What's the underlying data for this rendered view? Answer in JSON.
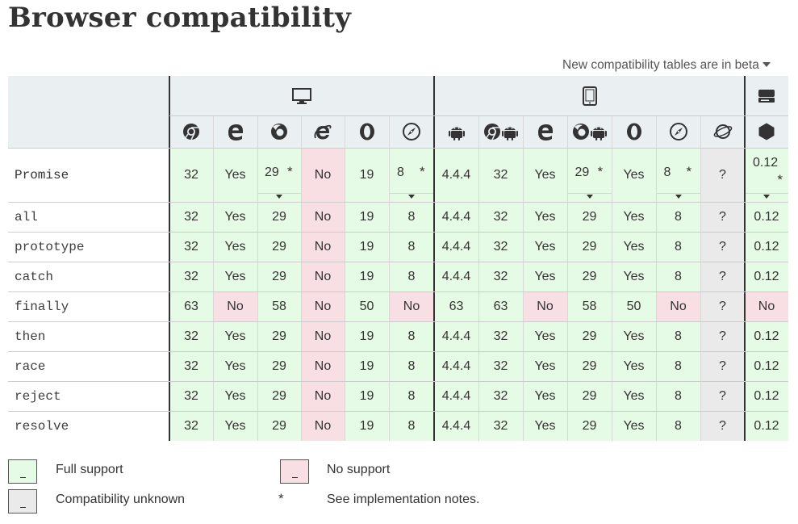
{
  "page": {
    "title": "Browser compatibility",
    "beta_link": "New compatibility tables are in beta"
  },
  "colors": {
    "full_support": "#e6fbe6",
    "no_support": "#f8dfe3",
    "unknown": "#eaeaea",
    "header_bg": "#eaeff2"
  },
  "platforms": [
    {
      "name": "desktop",
      "icon": "desktop-monitor-icon"
    },
    {
      "name": "mobile",
      "icon": "mobile-tablet-icon"
    },
    {
      "name": "server",
      "icon": "server-icon"
    }
  ],
  "browsers": [
    {
      "name": "chrome",
      "icon": "chrome-icon"
    },
    {
      "name": "edge",
      "icon": "edge-icon"
    },
    {
      "name": "firefox",
      "icon": "firefox-icon"
    },
    {
      "name": "ie",
      "icon": "internet-explorer-icon"
    },
    {
      "name": "opera",
      "icon": "opera-icon"
    },
    {
      "name": "safari",
      "icon": "safari-icon"
    },
    {
      "name": "webview-android",
      "icon": "android-icon"
    },
    {
      "name": "chrome-android",
      "icon": "chrome-android-icon"
    },
    {
      "name": "edge-mobile",
      "icon": "edge-icon"
    },
    {
      "name": "firefox-android",
      "icon": "firefox-android-icon"
    },
    {
      "name": "opera-android",
      "icon": "opera-icon"
    },
    {
      "name": "safari-ios",
      "icon": "safari-icon"
    },
    {
      "name": "samsung-internet",
      "icon": "samsung-internet-icon"
    },
    {
      "name": "nodejs",
      "icon": "nodejs-icon"
    }
  ],
  "rows": [
    {
      "feature": "Promise",
      "cells": [
        {
          "v": "32",
          "s": "yes"
        },
        {
          "v": "Yes",
          "s": "yes"
        },
        {
          "v": "29",
          "s": "yes",
          "note": "*"
        },
        {
          "v": "No",
          "s": "no"
        },
        {
          "v": "19",
          "s": "yes"
        },
        {
          "v": "8",
          "s": "yes",
          "note": "*"
        },
        {
          "v": "4.4.4",
          "s": "yes"
        },
        {
          "v": "32",
          "s": "yes"
        },
        {
          "v": "Yes",
          "s": "yes"
        },
        {
          "v": "29",
          "s": "yes",
          "note": "*"
        },
        {
          "v": "Yes",
          "s": "yes"
        },
        {
          "v": "8",
          "s": "yes",
          "note": "*"
        },
        {
          "v": "?",
          "s": "unk"
        },
        {
          "v": "0.12",
          "s": "yes",
          "note": "*"
        }
      ]
    },
    {
      "feature": "all",
      "cells": [
        {
          "v": "32",
          "s": "yes"
        },
        {
          "v": "Yes",
          "s": "yes"
        },
        {
          "v": "29",
          "s": "yes"
        },
        {
          "v": "No",
          "s": "no"
        },
        {
          "v": "19",
          "s": "yes"
        },
        {
          "v": "8",
          "s": "yes"
        },
        {
          "v": "4.4.4",
          "s": "yes"
        },
        {
          "v": "32",
          "s": "yes"
        },
        {
          "v": "Yes",
          "s": "yes"
        },
        {
          "v": "29",
          "s": "yes"
        },
        {
          "v": "Yes",
          "s": "yes"
        },
        {
          "v": "8",
          "s": "yes"
        },
        {
          "v": "?",
          "s": "unk"
        },
        {
          "v": "0.12",
          "s": "yes"
        }
      ]
    },
    {
      "feature": "prototype",
      "cells": [
        {
          "v": "32",
          "s": "yes"
        },
        {
          "v": "Yes",
          "s": "yes"
        },
        {
          "v": "29",
          "s": "yes"
        },
        {
          "v": "No",
          "s": "no"
        },
        {
          "v": "19",
          "s": "yes"
        },
        {
          "v": "8",
          "s": "yes"
        },
        {
          "v": "4.4.4",
          "s": "yes"
        },
        {
          "v": "32",
          "s": "yes"
        },
        {
          "v": "Yes",
          "s": "yes"
        },
        {
          "v": "29",
          "s": "yes"
        },
        {
          "v": "Yes",
          "s": "yes"
        },
        {
          "v": "8",
          "s": "yes"
        },
        {
          "v": "?",
          "s": "unk"
        },
        {
          "v": "0.12",
          "s": "yes"
        }
      ]
    },
    {
      "feature": "catch",
      "cells": [
        {
          "v": "32",
          "s": "yes"
        },
        {
          "v": "Yes",
          "s": "yes"
        },
        {
          "v": "29",
          "s": "yes"
        },
        {
          "v": "No",
          "s": "no"
        },
        {
          "v": "19",
          "s": "yes"
        },
        {
          "v": "8",
          "s": "yes"
        },
        {
          "v": "4.4.4",
          "s": "yes"
        },
        {
          "v": "32",
          "s": "yes"
        },
        {
          "v": "Yes",
          "s": "yes"
        },
        {
          "v": "29",
          "s": "yes"
        },
        {
          "v": "Yes",
          "s": "yes"
        },
        {
          "v": "8",
          "s": "yes"
        },
        {
          "v": "?",
          "s": "unk"
        },
        {
          "v": "0.12",
          "s": "yes"
        }
      ]
    },
    {
      "feature": "finally",
      "cells": [
        {
          "v": "63",
          "s": "yes"
        },
        {
          "v": "No",
          "s": "no"
        },
        {
          "v": "58",
          "s": "yes"
        },
        {
          "v": "No",
          "s": "no"
        },
        {
          "v": "50",
          "s": "yes"
        },
        {
          "v": "No",
          "s": "no"
        },
        {
          "v": "63",
          "s": "yes"
        },
        {
          "v": "63",
          "s": "yes"
        },
        {
          "v": "No",
          "s": "no"
        },
        {
          "v": "58",
          "s": "yes"
        },
        {
          "v": "50",
          "s": "yes"
        },
        {
          "v": "No",
          "s": "no"
        },
        {
          "v": "?",
          "s": "unk"
        },
        {
          "v": "No",
          "s": "no"
        }
      ]
    },
    {
      "feature": "then",
      "cells": [
        {
          "v": "32",
          "s": "yes"
        },
        {
          "v": "Yes",
          "s": "yes"
        },
        {
          "v": "29",
          "s": "yes"
        },
        {
          "v": "No",
          "s": "no"
        },
        {
          "v": "19",
          "s": "yes"
        },
        {
          "v": "8",
          "s": "yes"
        },
        {
          "v": "4.4.4",
          "s": "yes"
        },
        {
          "v": "32",
          "s": "yes"
        },
        {
          "v": "Yes",
          "s": "yes"
        },
        {
          "v": "29",
          "s": "yes"
        },
        {
          "v": "Yes",
          "s": "yes"
        },
        {
          "v": "8",
          "s": "yes"
        },
        {
          "v": "?",
          "s": "unk"
        },
        {
          "v": "0.12",
          "s": "yes"
        }
      ]
    },
    {
      "feature": "race",
      "cells": [
        {
          "v": "32",
          "s": "yes"
        },
        {
          "v": "Yes",
          "s": "yes"
        },
        {
          "v": "29",
          "s": "yes"
        },
        {
          "v": "No",
          "s": "no"
        },
        {
          "v": "19",
          "s": "yes"
        },
        {
          "v": "8",
          "s": "yes"
        },
        {
          "v": "4.4.4",
          "s": "yes"
        },
        {
          "v": "32",
          "s": "yes"
        },
        {
          "v": "Yes",
          "s": "yes"
        },
        {
          "v": "29",
          "s": "yes"
        },
        {
          "v": "Yes",
          "s": "yes"
        },
        {
          "v": "8",
          "s": "yes"
        },
        {
          "v": "?",
          "s": "unk"
        },
        {
          "v": "0.12",
          "s": "yes"
        }
      ]
    },
    {
      "feature": "reject",
      "cells": [
        {
          "v": "32",
          "s": "yes"
        },
        {
          "v": "Yes",
          "s": "yes"
        },
        {
          "v": "29",
          "s": "yes"
        },
        {
          "v": "No",
          "s": "no"
        },
        {
          "v": "19",
          "s": "yes"
        },
        {
          "v": "8",
          "s": "yes"
        },
        {
          "v": "4.4.4",
          "s": "yes"
        },
        {
          "v": "32",
          "s": "yes"
        },
        {
          "v": "Yes",
          "s": "yes"
        },
        {
          "v": "29",
          "s": "yes"
        },
        {
          "v": "Yes",
          "s": "yes"
        },
        {
          "v": "8",
          "s": "yes"
        },
        {
          "v": "?",
          "s": "unk"
        },
        {
          "v": "0.12",
          "s": "yes"
        }
      ]
    },
    {
      "feature": "resolve",
      "cells": [
        {
          "v": "32",
          "s": "yes"
        },
        {
          "v": "Yes",
          "s": "yes"
        },
        {
          "v": "29",
          "s": "yes"
        },
        {
          "v": "No",
          "s": "no"
        },
        {
          "v": "19",
          "s": "yes"
        },
        {
          "v": "8",
          "s": "yes"
        },
        {
          "v": "4.4.4",
          "s": "yes"
        },
        {
          "v": "32",
          "s": "yes"
        },
        {
          "v": "Yes",
          "s": "yes"
        },
        {
          "v": "29",
          "s": "yes"
        },
        {
          "v": "Yes",
          "s": "yes"
        },
        {
          "v": "8",
          "s": "yes"
        },
        {
          "v": "?",
          "s": "unk"
        },
        {
          "v": "0.12",
          "s": "yes"
        }
      ]
    }
  ],
  "legend": {
    "full_support": "Full support",
    "no_support": "No support",
    "unknown": "Compatibility unknown",
    "notes_symbol": "*",
    "notes": "See implementation notes."
  }
}
